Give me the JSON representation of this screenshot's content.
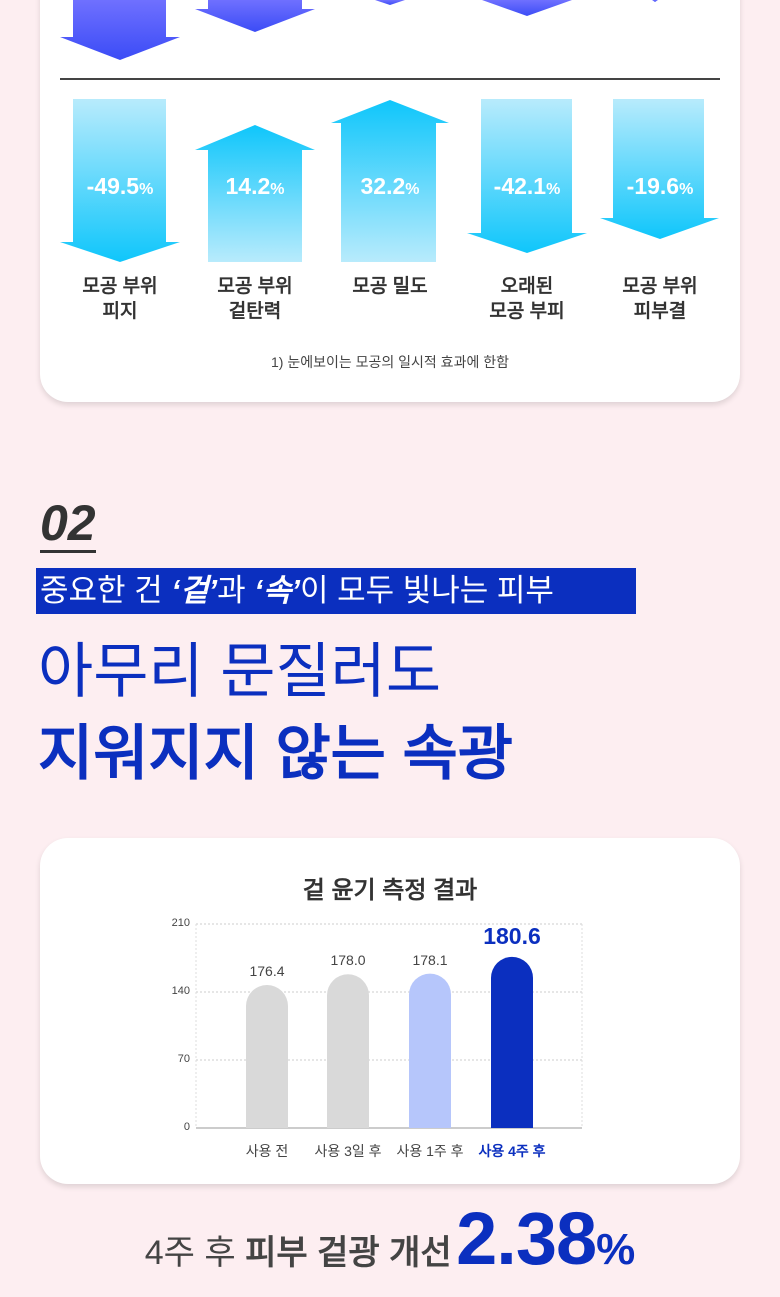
{
  "colors": {
    "background": "#fdeef1",
    "brand_blue": "#0b2fbf",
    "arrow_cyan": "#12c8fb",
    "arrow_light": "#b8ebfc",
    "bar_gray": "#d9d9d9",
    "bar_light_blue": "#b6c6fb"
  },
  "results": {
    "items": [
      {
        "value": "-49.5",
        "unit": "%",
        "direction": "down",
        "label_line1": "모공 부위",
        "label_line2": "피지"
      },
      {
        "value": "14.2",
        "unit": "%",
        "direction": "up",
        "label_line1": "모공 부위",
        "label_line2": "겉탄력"
      },
      {
        "value": "32.2",
        "unit": "%",
        "direction": "up",
        "label_line1": "모공 밀도",
        "label_line2": ""
      },
      {
        "value": "-42.1",
        "unit": "%",
        "direction": "down",
        "label_line1": "오래된",
        "label_line2": "모공 부피"
      },
      {
        "value": "-19.6",
        "unit": "%",
        "direction": "down",
        "label_line1": "모공 부위",
        "label_line2": "피부결"
      }
    ],
    "footnote": "1) 눈에보이는 모공의 일시적 효과에 한함"
  },
  "section": {
    "number": "02",
    "banner_parts": [
      "중요한 건 ",
      "‘겉’",
      "과 ",
      "‘속’",
      "이 모두 빛나는 피부"
    ],
    "headline_line1": "아무리 문질러도",
    "headline_line2": "지워지지 않는 속광"
  },
  "chart_data": {
    "type": "bar",
    "title": "겉 윤기 측정 결과",
    "categories": [
      "사용 전",
      "사용 3일 후",
      "사용 1주 후",
      "사용 4주 후"
    ],
    "values": [
      176.4,
      178.0,
      178.1,
      180.6
    ],
    "value_labels": [
      "176.4",
      "178.0",
      "178.1",
      "180.6"
    ],
    "yticks": [
      "0",
      "70",
      "140",
      "210"
    ],
    "ylim": [
      0,
      210
    ],
    "grid": true,
    "bar_colors": [
      "#d9d9d9",
      "#d9d9d9",
      "#b6c6fb",
      "#0b2fbf"
    ],
    "highlight_index": 3
  },
  "summary": {
    "prefix": "4주 후 ",
    "bold": "피부 겉광 개선",
    "value": "2.38",
    "unit": "%"
  }
}
